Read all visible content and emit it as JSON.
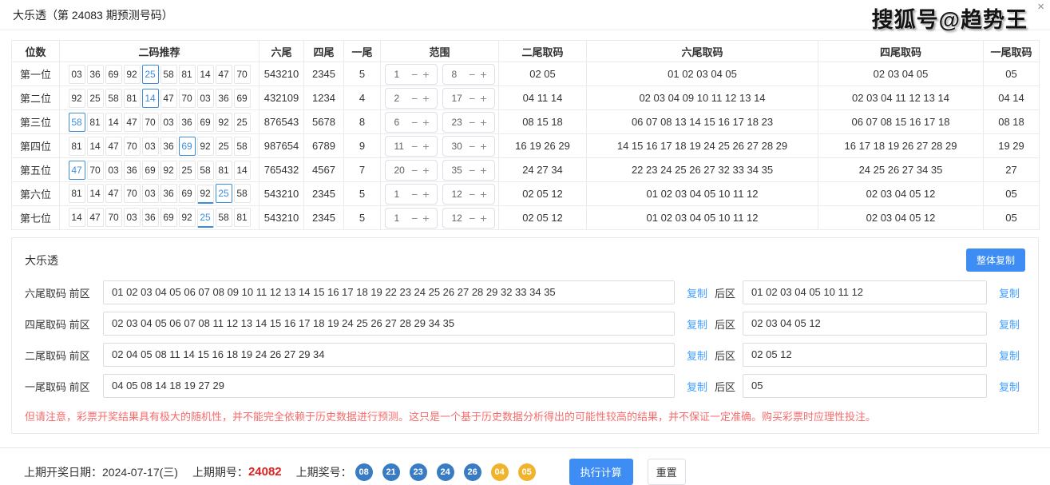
{
  "header": {
    "title": "大乐透（第 24083 期预测号码）",
    "watermark": "搜狐号@趋势王",
    "close_glyph": "×"
  },
  "table": {
    "columns": [
      "位数",
      "二码推荐",
      "六尾",
      "四尾",
      "一尾",
      "范围",
      "二尾取码",
      "六尾取码",
      "四尾取码",
      "一尾取码"
    ],
    "stepper_minus": "−",
    "stepper_plus": "+",
    "rows": [
      {
        "label": "第一位",
        "codes": [
          "03",
          "36",
          "69",
          "92",
          "25",
          "58",
          "81",
          "14",
          "47",
          "70"
        ],
        "box": 4,
        "underline": -1,
        "blue": -1,
        "six_tail": "543210",
        "four_tail": "2345",
        "one_tail": "5",
        "range": [
          "1",
          "8"
        ],
        "two_tail_codes": "02 05",
        "six_tail_codes": "01 02 03 04 05",
        "four_tail_codes": "02 03 04 05",
        "one_tail_codes": "05"
      },
      {
        "label": "第二位",
        "codes": [
          "92",
          "25",
          "58",
          "81",
          "14",
          "47",
          "70",
          "03",
          "36",
          "69"
        ],
        "box": 4,
        "underline": -1,
        "blue": -1,
        "six_tail": "432109",
        "four_tail": "1234",
        "one_tail": "4",
        "range": [
          "2",
          "17"
        ],
        "two_tail_codes": "04 11 14",
        "six_tail_codes": "02 03 04 09 10 11 12 13 14",
        "four_tail_codes": "02 03 04 11 12 13 14",
        "one_tail_codes": "04 14"
      },
      {
        "label": "第三位",
        "codes": [
          "58",
          "81",
          "14",
          "47",
          "70",
          "03",
          "36",
          "69",
          "92",
          "25"
        ],
        "box": 0,
        "underline": -1,
        "blue": -1,
        "six_tail": "876543",
        "four_tail": "5678",
        "one_tail": "8",
        "range": [
          "6",
          "23"
        ],
        "two_tail_codes": "08 15 18",
        "six_tail_codes": "06 07 08 13 14 15 16 17 18 23",
        "four_tail_codes": "06 07 08 15 16 17 18",
        "one_tail_codes": "08 18"
      },
      {
        "label": "第四位",
        "codes": [
          "81",
          "14",
          "47",
          "70",
          "03",
          "36",
          "69",
          "92",
          "25",
          "58"
        ],
        "box": 6,
        "underline": -1,
        "blue": -1,
        "six_tail": "987654",
        "four_tail": "6789",
        "one_tail": "9",
        "range": [
          "11",
          "30"
        ],
        "two_tail_codes": "16 19 26 29",
        "six_tail_codes": "14 15 16 17 18 19 24 25 26 27 28 29",
        "four_tail_codes": "16 17 18 19 26 27 28 29",
        "one_tail_codes": "19 29"
      },
      {
        "label": "第五位",
        "codes": [
          "47",
          "70",
          "03",
          "36",
          "69",
          "92",
          "25",
          "58",
          "81",
          "14"
        ],
        "box": 0,
        "underline": -1,
        "blue": -1,
        "six_tail": "765432",
        "four_tail": "4567",
        "one_tail": "7",
        "range": [
          "20",
          "35"
        ],
        "two_tail_codes": "24 27 34",
        "six_tail_codes": "22 23 24 25 26 27 32 33 34 35",
        "four_tail_codes": "24 25 26 27 34 35",
        "one_tail_codes": "27"
      },
      {
        "label": "第六位",
        "codes": [
          "81",
          "14",
          "47",
          "70",
          "03",
          "36",
          "69",
          "92",
          "25",
          "58"
        ],
        "box": 8,
        "underline": 7,
        "blue": -1,
        "six_tail": "543210",
        "four_tail": "2345",
        "one_tail": "5",
        "range": [
          "1",
          "12"
        ],
        "two_tail_codes": "02 05 12",
        "six_tail_codes": "01 02 03 04 05 10 11 12",
        "four_tail_codes": "02 03 04 05 12",
        "one_tail_codes": "05"
      },
      {
        "label": "第七位",
        "codes": [
          "14",
          "47",
          "70",
          "03",
          "36",
          "69",
          "92",
          "25",
          "58",
          "81"
        ],
        "box": -1,
        "underline": 7,
        "blue": 7,
        "six_tail": "543210",
        "four_tail": "2345",
        "one_tail": "5",
        "range": [
          "1",
          "12"
        ],
        "two_tail_codes": "02 05 12",
        "six_tail_codes": "01 02 03 04 05 10 11 12",
        "four_tail_codes": "02 03 04 05 12",
        "one_tail_codes": "05"
      }
    ]
  },
  "panel": {
    "title": "大乐透",
    "copy_all_label": "整体复制",
    "copy_label": "复制",
    "back_zone_label": "后区",
    "rows": [
      {
        "label": "六尾取码",
        "zone": "前区",
        "front": "01 02 03 04 05 06 07 08 09 10 11 12 13 14 15 16 17 18 19 22 23 24 25 26 27 28 29 32 33 34 35",
        "back": "01 02 03 04 05 10 11 12"
      },
      {
        "label": "四尾取码",
        "zone": "前区",
        "front": "02 03 04 05 06 07 08 11 12 13 14 15 16 17 18 19 24 25 26 27 28 29 34 35",
        "back": "02 03 04 05 12"
      },
      {
        "label": "二尾取码",
        "zone": "前区",
        "front": "02 04 05 08 11 14 15 16 18 19 24 26 27 29 34",
        "back": "02 05 12"
      },
      {
        "label": "一尾取码",
        "zone": "前区",
        "front": "04 05 08 14 18 19 27 29",
        "back": "05"
      }
    ],
    "warning": "但请注意，彩票开奖结果具有极大的随机性，并不能完全依赖于历史数据进行预测。这只是一个基于历史数据分析得出的可能性较高的结果，并不保证一定准确。购买彩票时应理性投注。"
  },
  "footer": {
    "draw_date_label": "上期开奖日期：",
    "draw_date": "2024-07-17(三)",
    "issue_label": "上期期号：",
    "issue": "24082",
    "numbers_label": "上期奖号：",
    "balls": [
      {
        "value": "08",
        "zone": "front"
      },
      {
        "value": "21",
        "zone": "front"
      },
      {
        "value": "23",
        "zone": "front"
      },
      {
        "value": "24",
        "zone": "front"
      },
      {
        "value": "26",
        "zone": "front"
      },
      {
        "value": "04",
        "zone": "back"
      },
      {
        "value": "05",
        "zone": "back"
      }
    ],
    "run_label": "执行计算",
    "reset_label": "重置"
  },
  "colors": {
    "accent_blue": "#3d8df5",
    "link_blue": "#409eff",
    "highlight_blue": "#3c8dde",
    "warning_red": "#f56c6c",
    "issue_red": "#e02020",
    "ball_blue": "#3a7cc4",
    "ball_yellow": "#f0b32c"
  }
}
